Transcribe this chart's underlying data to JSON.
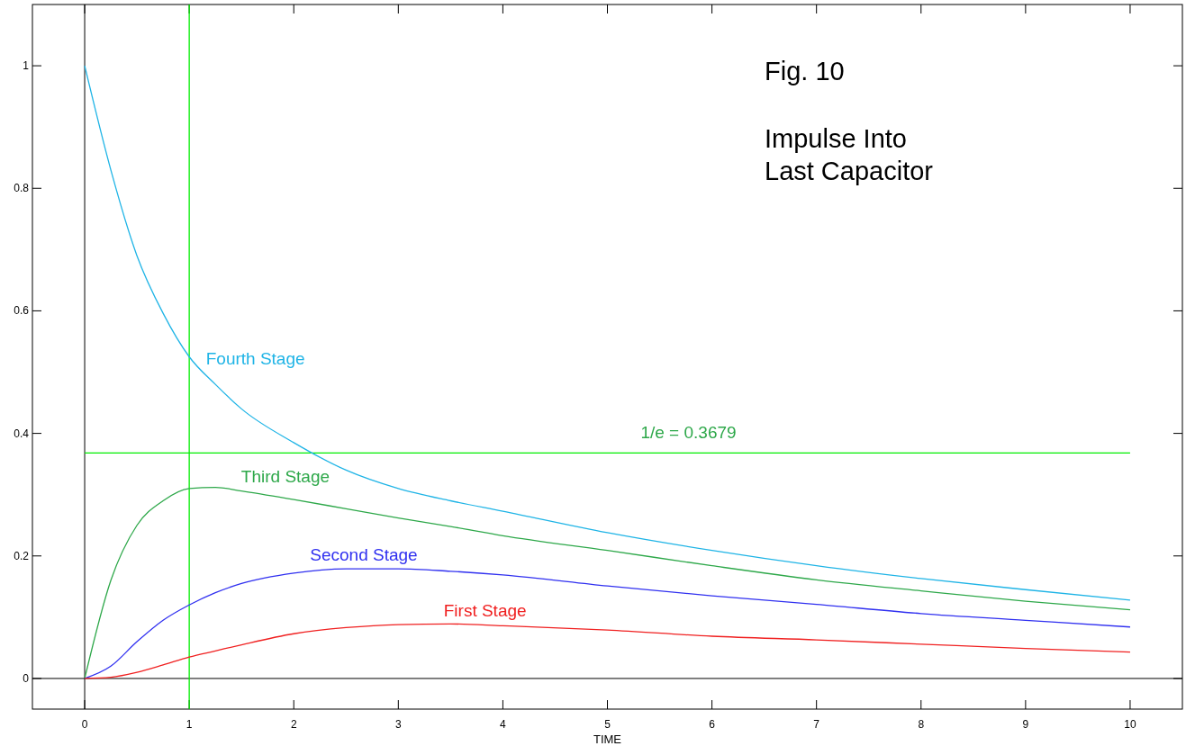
{
  "chart_data": {
    "type": "line",
    "title": "Fig. 10",
    "subtitle": "Impulse Into Last Capacitor",
    "xlabel": "TIME",
    "xlim": [
      -0.5,
      10.5
    ],
    "ylim": [
      -0.05,
      1.1
    ],
    "xticks": [
      0,
      1,
      2,
      3,
      4,
      5,
      6,
      7,
      8,
      9,
      10
    ],
    "yticks": [
      0,
      0.2,
      0.4,
      0.6,
      0.8,
      1
    ],
    "grid": false,
    "marker": "none",
    "line_style": "solid",
    "x": [
      0,
      0.25,
      0.5,
      0.75,
      1,
      1.25,
      1.5,
      2,
      2.5,
      3,
      3.5,
      4,
      5,
      6,
      7,
      8,
      9,
      10
    ],
    "series": [
      {
        "name": "Fourth Stage",
        "color": "#1fb4e6",
        "values": [
          1.0,
          0.83,
          0.69,
          0.596,
          0.525,
          0.48,
          0.44,
          0.385,
          0.34,
          0.31,
          0.29,
          0.273,
          0.238,
          0.209,
          0.184,
          0.163,
          0.145,
          0.128
        ]
      },
      {
        "name": "Third Stage",
        "color": "#2ea84a",
        "values": [
          0,
          0.16,
          0.25,
          0.29,
          0.31,
          0.312,
          0.306,
          0.292,
          0.277,
          0.262,
          0.248,
          0.233,
          0.209,
          0.184,
          0.161,
          0.143,
          0.126,
          0.112
        ]
      },
      {
        "name": "Second Stage",
        "color": "#3030f0",
        "values": [
          0,
          0.02,
          0.06,
          0.095,
          0.12,
          0.14,
          0.155,
          0.172,
          0.179,
          0.179,
          0.175,
          0.169,
          0.151,
          0.135,
          0.121,
          0.106,
          0.095,
          0.084
        ]
      },
      {
        "name": "First Stage",
        "color": "#f02020",
        "values": [
          0,
          0.002,
          0.01,
          0.022,
          0.035,
          0.045,
          0.055,
          0.073,
          0.083,
          0.088,
          0.089,
          0.086,
          0.079,
          0.069,
          0.063,
          0.056,
          0.049,
          0.043
        ]
      }
    ],
    "ref_lines": [
      {
        "axis": "x",
        "value": 0,
        "color": "#000000"
      },
      {
        "axis": "y",
        "value": 0,
        "color": "#000000"
      },
      {
        "axis": "x",
        "value": 1,
        "color": "#00ee00"
      },
      {
        "axis": "y",
        "value": 0.3679,
        "label": "1/e = 0.3679",
        "color": "#00ee00"
      }
    ]
  }
}
